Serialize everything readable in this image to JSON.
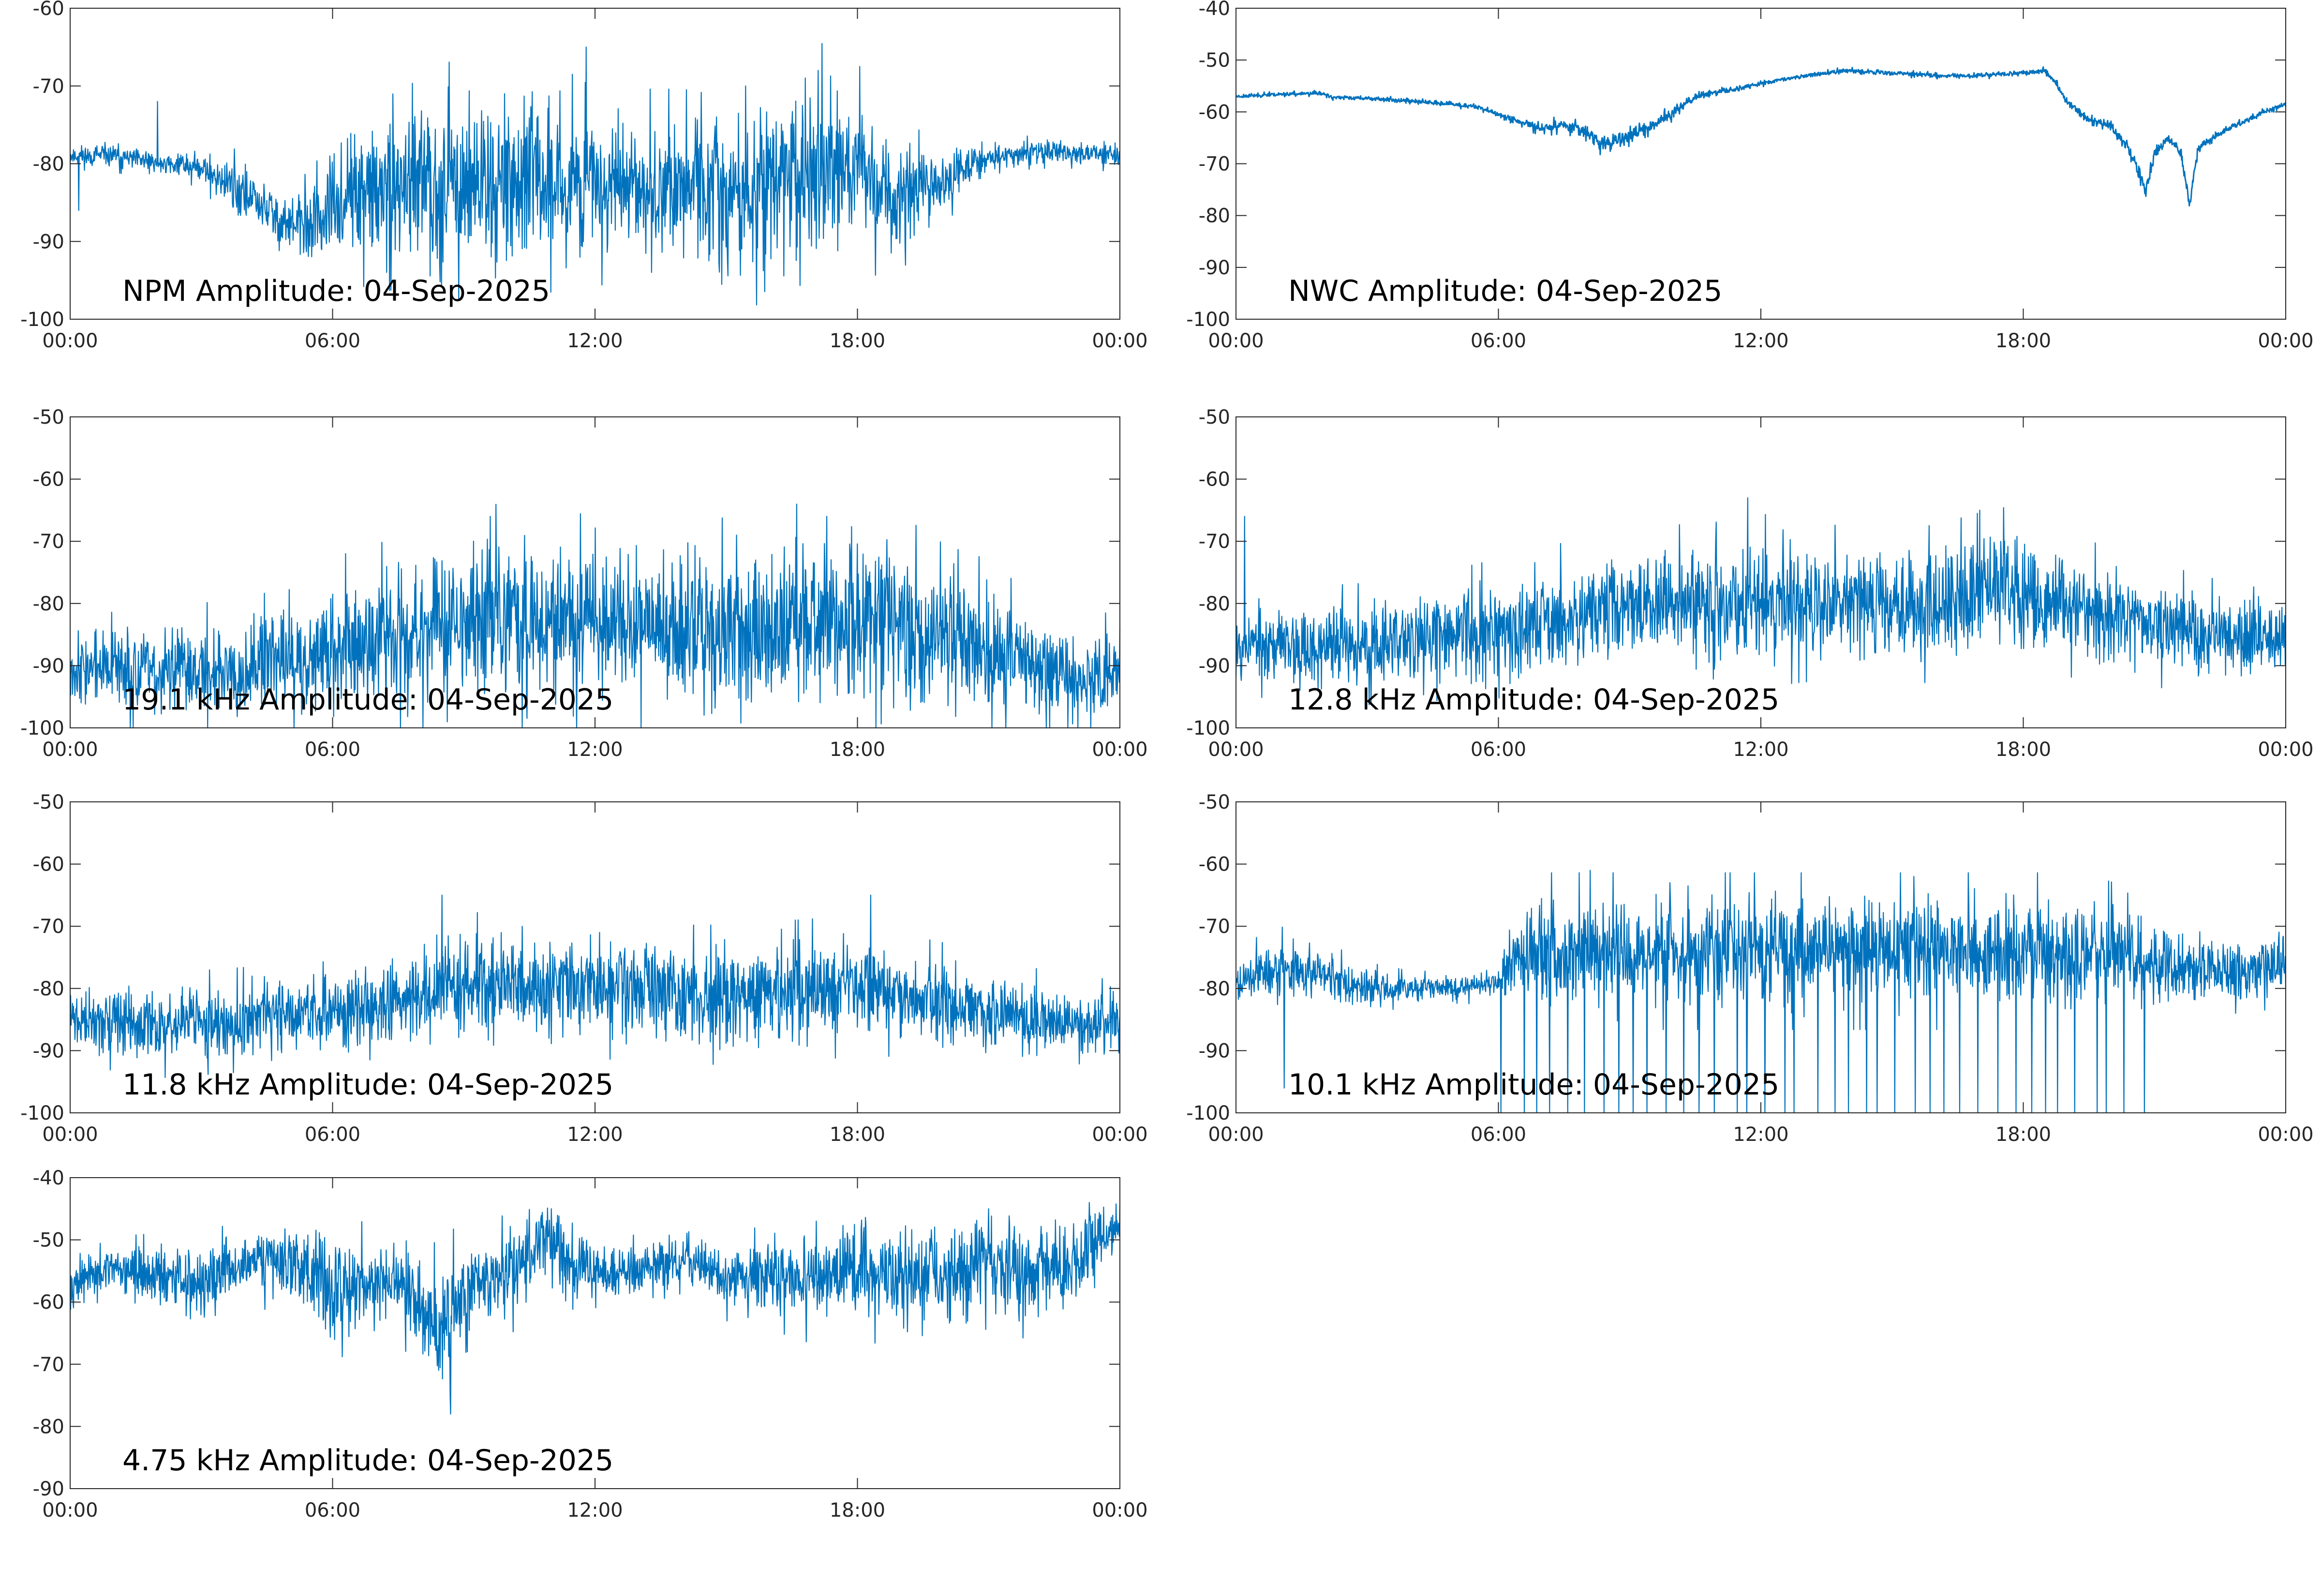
{
  "style": {
    "line_color": "#0072bd",
    "axes_color": "#262626",
    "background": "#ffffff"
  },
  "chart_data": [
    {
      "type": "line",
      "title": "NPM Amplitude: 04-Sep-2025",
      "xlabel": "",
      "ylabel": "",
      "xticks": [
        "00:00",
        "06:00",
        "12:00",
        "18:00",
        "00:00"
      ],
      "xlim": [
        "00:00",
        "24:00"
      ],
      "ylim": [
        -100,
        -60
      ],
      "yticks": [
        -100,
        -90,
        -80,
        -70,
        -60
      ],
      "grid": false,
      "series": [
        {
          "x_hours": [
            0,
            1,
            2,
            2.5,
            3,
            3.5,
            4,
            4.5,
            5,
            5.5,
            6,
            6.5,
            7,
            7.5,
            8,
            8.5,
            9,
            9.5,
            10,
            10.5,
            11,
            11.5,
            12,
            12.5,
            13,
            13.5,
            14,
            14.5,
            15,
            15.5,
            16,
            16.5,
            17,
            17.5,
            18,
            18.5,
            19,
            19.5,
            20,
            20.5,
            21,
            22,
            23,
            24
          ],
          "level": [
            -79,
            -79,
            -80,
            -80,
            -80.5,
            -82,
            -84,
            -86,
            -88,
            -88,
            -86,
            -84,
            -84,
            -83.5,
            -83,
            -82.5,
            -82,
            -82,
            -82,
            -82,
            -82.5,
            -82.5,
            -83,
            -83,
            -83,
            -83,
            -83,
            -83.5,
            -84,
            -84,
            -83,
            -82,
            -81,
            -80.5,
            -81,
            -83,
            -84,
            -83,
            -82,
            -80.5,
            -79.5,
            -78.5,
            -78.5,
            -79
          ],
          "spread": [
            1.5,
            1.5,
            1.5,
            1.5,
            2,
            3,
            4,
            4,
            4,
            5,
            7,
            8,
            9,
            9,
            10,
            11,
            11,
            11,
            11,
            11,
            10,
            10,
            9,
            9,
            9,
            9,
            9,
            9,
            10,
            10,
            11,
            12,
            12,
            11,
            10,
            8,
            7,
            5,
            4,
            3,
            2,
            1.5,
            1.5,
            1.5
          ],
          "spikes": [
            {
              "x_hours": 11.8,
              "value": -65
            },
            {
              "x_hours": 2,
              "value": -72
            },
            {
              "x_hours": 17.1,
              "value": -68
            },
            {
              "x_hours": 0.2,
              "value": -86
            }
          ],
          "seed": 11
        }
      ]
    },
    {
      "type": "line",
      "title": "NWC Amplitude: 04-Sep-2025",
      "xlabel": "",
      "ylabel": "",
      "xticks": [
        "00:00",
        "06:00",
        "12:00",
        "18:00",
        "00:00"
      ],
      "xlim": [
        "00:00",
        "24:00"
      ],
      "ylim": [
        -100,
        -40
      ],
      "yticks": [
        -100,
        -90,
        -80,
        -70,
        -60,
        -50,
        -40
      ],
      "grid": false,
      "series": [
        {
          "x_hours": [
            0,
            1,
            2,
            2.2,
            3,
            4,
            5,
            5.5,
            6,
            6.5,
            7,
            7.5,
            8,
            8.3,
            8.6,
            9,
            9.5,
            10,
            10.5,
            11,
            11.5,
            12,
            13,
            14,
            15,
            16,
            17,
            18,
            18.5,
            18.7,
            19,
            19.5,
            20,
            20.4,
            20.8,
            21,
            21.3,
            21.6,
            21.8,
            22,
            22.5,
            23,
            23.5,
            24
          ],
          "level": [
            -57,
            -56.6,
            -56.4,
            -57.2,
            -57.4,
            -57.9,
            -58.6,
            -59,
            -60.5,
            -62,
            -63,
            -62.5,
            -63.5,
            -66,
            -66,
            -64.5,
            -63,
            -60,
            -57,
            -56.2,
            -55.5,
            -54.5,
            -53,
            -52,
            -52.5,
            -53,
            -53,
            -52.5,
            -52,
            -54,
            -58,
            -61.5,
            -62.5,
            -67,
            -75,
            -68,
            -65,
            -68,
            -78,
            -67,
            -64,
            -62,
            -60,
            -58.5
          ],
          "spread": [
            0.4,
            0.4,
            0.4,
            0.4,
            0.4,
            0.5,
            0.5,
            0.5,
            0.6,
            0.8,
            1.2,
            1.2,
            1.5,
            1.6,
            1.6,
            1.5,
            1.4,
            1.2,
            0.9,
            0.8,
            0.6,
            0.5,
            0.5,
            0.5,
            0.5,
            0.5,
            0.5,
            0.5,
            0.5,
            0.7,
            0.8,
            1,
            1,
            1.2,
            1.5,
            1.2,
            1,
            1.2,
            1.5,
            1.2,
            0.8,
            0.6,
            0.5,
            0.5
          ],
          "spikes": [],
          "seed": 23
        }
      ]
    },
    {
      "type": "line",
      "title": "19.1 kHz Amplitude: 04-Sep-2025",
      "xlabel": "",
      "ylabel": "",
      "xticks": [
        "00:00",
        "06:00",
        "12:00",
        "18:00",
        "00:00"
      ],
      "xlim": [
        "00:00",
        "24:00"
      ],
      "ylim": [
        -100,
        -50
      ],
      "yticks": [
        -100,
        -90,
        -80,
        -70,
        -60,
        -50
      ],
      "grid": false,
      "series": [
        {
          "x_hours": [
            0,
            2,
            4,
            5,
            6,
            7,
            8,
            9,
            10,
            11,
            12,
            13,
            14,
            15,
            16,
            17,
            18,
            19,
            20,
            21,
            22,
            23,
            24
          ],
          "level": [
            -90,
            -91,
            -90,
            -89,
            -88,
            -86,
            -84,
            -83,
            -82,
            -82.5,
            -83,
            -83.5,
            -84,
            -84.5,
            -84,
            -82.5,
            -82,
            -84,
            -86,
            -87,
            -90,
            -92,
            -91
          ],
          "spread": [
            6,
            7,
            8,
            8,
            10,
            11,
            12,
            13,
            13,
            13,
            12,
            12,
            13,
            13,
            13,
            14,
            14,
            13,
            11,
            10,
            8,
            7,
            7
          ],
          "spikes": [
            {
              "x_hours": 6.3,
              "value": -72
            },
            {
              "x_hours": 9.6,
              "value": -66
            },
            {
              "x_hours": 17.3,
              "value": -66
            }
          ],
          "seed": 37
        }
      ]
    },
    {
      "type": "line",
      "title": "12.8 kHz Amplitude: 04-Sep-2025",
      "xlabel": "",
      "ylabel": "",
      "xticks": [
        "00:00",
        "06:00",
        "12:00",
        "18:00",
        "00:00"
      ],
      "xlim": [
        "00:00",
        "24:00"
      ],
      "ylim": [
        -100,
        -50
      ],
      "yticks": [
        -100,
        -90,
        -80,
        -70,
        -60,
        -50
      ],
      "grid": false,
      "series": [
        {
          "x_hours": [
            0,
            2,
            4,
            6,
            7,
            8,
            9,
            10,
            11,
            12,
            13,
            14,
            15,
            16,
            17,
            17.5,
            18,
            19,
            20,
            21,
            22,
            23,
            24
          ],
          "level": [
            -86,
            -87,
            -86,
            -84,
            -83,
            -81,
            -80,
            -80,
            -79.5,
            -79.5,
            -80,
            -80,
            -80.5,
            -80,
            -78,
            -77,
            -79,
            -80.5,
            -82,
            -83.5,
            -85,
            -86,
            -85
          ],
          "spread": [
            6,
            7,
            7,
            8,
            8,
            9,
            9,
            9,
            9,
            10,
            9,
            9,
            9,
            9,
            9,
            9,
            9,
            8,
            8,
            7,
            7,
            6,
            6
          ],
          "spikes": [
            {
              "x_hours": 11.7,
              "value": -63
            },
            {
              "x_hours": 0.2,
              "value": -66
            },
            {
              "x_hours": 17,
              "value": -65
            }
          ],
          "seed": 53
        }
      ]
    },
    {
      "type": "line",
      "title": "11.8 kHz Amplitude: 04-Sep-2025",
      "xlabel": "",
      "ylabel": "",
      "xticks": [
        "00:00",
        "06:00",
        "12:00",
        "18:00",
        "00:00"
      ],
      "xlim": [
        "00:00",
        "24:00"
      ],
      "ylim": [
        -100,
        -50
      ],
      "yticks": [
        -100,
        -90,
        -80,
        -70,
        -60,
        -50
      ],
      "grid": false,
      "series": [
        {
          "x_hours": [
            0,
            2,
            4,
            6,
            7,
            8,
            9,
            10,
            11,
            12,
            13,
            14,
            15,
            16,
            17,
            18,
            19,
            20,
            21,
            22,
            23,
            24
          ],
          "level": [
            -85,
            -86,
            -85,
            -84,
            -83,
            -81,
            -79,
            -79,
            -79.5,
            -80,
            -80.5,
            -81,
            -81,
            -80.5,
            -80,
            -80,
            -81,
            -82.5,
            -84,
            -85,
            -86,
            -85
          ],
          "spread": [
            5,
            6,
            6,
            6,
            7,
            7,
            8,
            8,
            8,
            8,
            8,
            8,
            8,
            8,
            8,
            8,
            7,
            7,
            6,
            6,
            5,
            5
          ],
          "spikes": [
            {
              "x_hours": 8.5,
              "value": -65
            },
            {
              "x_hours": 12.1,
              "value": -71
            },
            {
              "x_hours": 18.3,
              "value": -65
            }
          ],
          "seed": 71
        }
      ]
    },
    {
      "type": "line",
      "title": "10.1 kHz Amplitude: 04-Sep-2025",
      "xlabel": "",
      "ylabel": "",
      "xticks": [
        "00:00",
        "06:00",
        "12:00",
        "18:00",
        "00:00"
      ],
      "xlim": [
        "00:00",
        "24:00"
      ],
      "ylim": [
        -100,
        -50
      ],
      "yticks": [
        -100,
        -90,
        -80,
        -70,
        -60,
        -50
      ],
      "grid": false,
      "series": [
        {
          "x_hours": [
            0,
            1,
            2,
            3,
            4,
            5,
            6,
            6.5,
            7,
            8,
            9,
            10,
            11,
            12,
            13,
            14,
            15,
            16,
            17,
            18,
            19,
            20,
            21,
            22,
            23,
            24
          ],
          "level": [
            -79,
            -77,
            -78,
            -80,
            -80,
            -80,
            -79,
            -75,
            -74,
            -74,
            -74,
            -74,
            -74,
            -74,
            -74,
            -74,
            -74,
            -74,
            -74,
            -74,
            -74,
            -74,
            -76,
            -77,
            -77,
            -76
          ],
          "spread": [
            4,
            5,
            4,
            3,
            2,
            2,
            2,
            7,
            9,
            9,
            9,
            9,
            9,
            9,
            9,
            9,
            9,
            9,
            9,
            9,
            9,
            8,
            6,
            5,
            5,
            5
          ],
          "spikes": [
            {
              "x_hours": 1.1,
              "value": -96
            },
            {
              "x_hours": 8.1,
              "value": -61
            },
            {
              "x_hours": 15.5,
              "value": -62
            }
          ],
          "dropouts": {
            "from_hours": 6.0,
            "to_hours": 21.0,
            "count": 40,
            "value": -100
          },
          "seed": 89
        }
      ]
    },
    {
      "type": "line",
      "title": "4.75 kHz Amplitude: 04-Sep-2025",
      "xlabel": "",
      "ylabel": "",
      "xticks": [
        "00:00",
        "06:00",
        "12:00",
        "18:00",
        "00:00"
      ],
      "xlim": [
        "00:00",
        "24:00"
      ],
      "ylim": [
        -90,
        -40
      ],
      "yticks": [
        -90,
        -80,
        -70,
        -60,
        -50,
        -40
      ],
      "grid": false,
      "series": [
        {
          "x_hours": [
            0,
            1,
            2,
            3,
            4,
            5,
            6,
            7,
            7.5,
            8,
            8.5,
            9,
            10,
            10.5,
            11,
            11.5,
            12,
            13,
            14,
            15,
            16,
            17,
            18,
            19,
            20,
            21,
            22,
            23,
            24
          ],
          "level": [
            -57,
            -55,
            -56,
            -57,
            -54,
            -53,
            -58,
            -57,
            -56,
            -62,
            -65,
            -57,
            -56,
            -52,
            -49,
            -55,
            -55,
            -55,
            -53,
            -56,
            -56,
            -57,
            -55,
            -56,
            -56,
            -53,
            -55,
            -54,
            -47
          ],
          "spread": [
            4,
            4,
            5,
            6,
            5,
            6,
            10,
            6,
            6,
            9,
            10,
            8,
            7,
            7,
            6,
            7,
            5,
            4,
            4,
            5,
            6,
            7,
            8,
            8,
            8,
            8,
            8,
            8,
            3
          ],
          "spikes": [
            {
              "x_hours": 8.7,
              "value": -78
            },
            {
              "x_hours": 11,
              "value": -45
            },
            {
              "x_hours": 21,
              "value": -45
            },
            {
              "x_hours": 23.3,
              "value": -44
            }
          ],
          "seed": 97
        }
      ]
    }
  ]
}
